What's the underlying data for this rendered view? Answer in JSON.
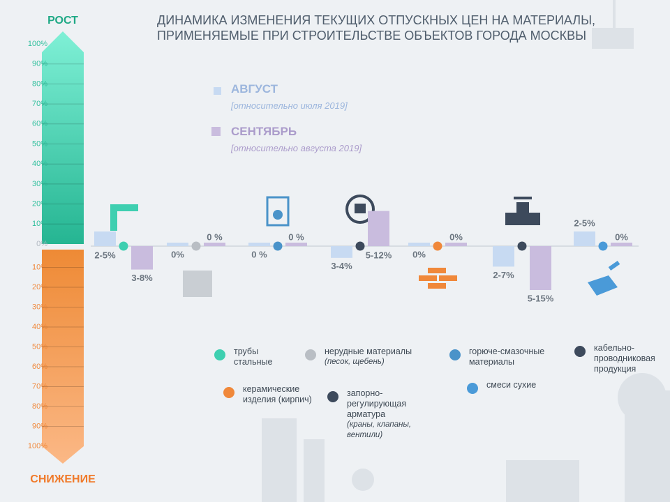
{
  "chart_data": {
    "type": "bar",
    "title": "ДИНАМИКА ИЗМЕНЕНИЯ ТЕКУЩИХ ОТПУСКНЫХ ЦЕН НА МАТЕРИАЛЫ, ПРИМЕНЯЕМЫЕ ПРИ СТРОИТЕЛЬСТВЕ ОБЪЕКТОВ ГОРОДА МОСКВЫ",
    "scale_top_label": "РОСТ",
    "scale_bottom_label": "СНИЖЕНИЕ",
    "ylim": [
      -100,
      100
    ],
    "yticks": [
      {
        "value": 100,
        "label": "100%"
      },
      {
        "value": 90,
        "label": "90%"
      },
      {
        "value": 80,
        "label": "80%"
      },
      {
        "value": 70,
        "label": "70%"
      },
      {
        "value": 60,
        "label": "60%"
      },
      {
        "value": 50,
        "label": "50%"
      },
      {
        "value": 40,
        "label": "40%"
      },
      {
        "value": 30,
        "label": "30%"
      },
      {
        "value": 20,
        "label": "20%"
      },
      {
        "value": 10,
        "label": "10%"
      },
      {
        "value": 0,
        "label": "0%"
      },
      {
        "value": -10,
        "label": "10%"
      },
      {
        "value": -20,
        "label": "20%"
      },
      {
        "value": -30,
        "label": "30%"
      },
      {
        "value": -40,
        "label": "40%"
      },
      {
        "value": -50,
        "label": "50%"
      },
      {
        "value": -60,
        "label": "60%"
      },
      {
        "value": -70,
        "label": "70%"
      },
      {
        "value": -80,
        "label": "80%"
      },
      {
        "value": -90,
        "label": "90%"
      },
      {
        "value": -100,
        "label": "100%"
      }
    ],
    "categories": [
      "трубы стальные",
      "нерудные материалы",
      "горюче-смазочные материалы",
      "кабельно-проводниковая продукция",
      "керамические изделия (кирпич)",
      "запорно-регулирующая арматура",
      "смеси сухие"
    ],
    "category_notes": [
      null,
      "(песок, щебень)",
      null,
      null,
      null,
      "(краны, клапаны, вентили)",
      null
    ],
    "category_colors": [
      "#3ecfb0",
      "#b9bec4",
      "#4a93c9",
      "#3d4a5c",
      "#f0883a",
      "#3d4a5c",
      "#4a9ad8"
    ],
    "series": [
      {
        "name": "АВГУСТ",
        "note": "[относительно июля 2019]",
        "color": "#c7daf2",
        "values": [
          [
            2,
            5
          ],
          [
            0,
            0
          ],
          [
            0,
            0
          ],
          [
            -3,
            -4
          ],
          [
            0,
            0
          ],
          [
            -2,
            -7
          ],
          [
            2,
            5
          ]
        ],
        "value_labels": [
          "2-5%",
          "0%",
          "0 %",
          "3-4%",
          "0%",
          "2-7%",
          "2-5%"
        ]
      },
      {
        "name": "СЕНТЯБРЬ",
        "note": "[относительно августа 2019]",
        "color": "#c9bcde",
        "values": [
          [
            -3,
            -8
          ],
          [
            0,
            0
          ],
          [
            0,
            0
          ],
          [
            5,
            12
          ],
          [
            0,
            0
          ],
          [
            -5,
            -15
          ],
          [
            0,
            0
          ]
        ],
        "value_labels": [
          "3-8%",
          "0 %",
          "0 %",
          "5-12%",
          "0%",
          "5-15%",
          "0%"
        ]
      }
    ]
  }
}
